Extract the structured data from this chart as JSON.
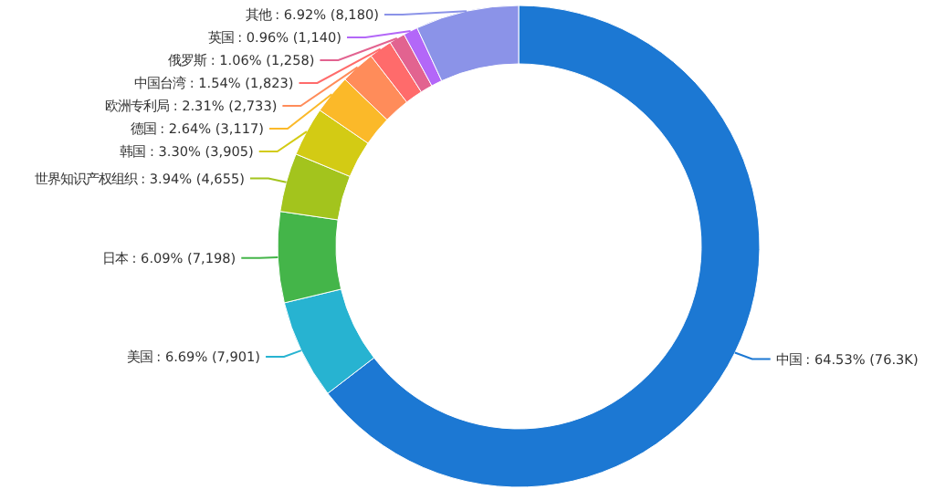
{
  "chart_data": {
    "type": "donut",
    "categories": [
      "中国",
      "美国",
      "日本",
      "世界知识产权组织",
      "韩国",
      "德国",
      "欧洲专利局",
      "中国台湾",
      "俄罗斯",
      "英国",
      "其他"
    ],
    "values": [
      76300,
      7901,
      7198,
      4655,
      3905,
      3117,
      2733,
      1823,
      1258,
      1140,
      8180
    ],
    "value_labels": [
      "64.53% (76.3K)",
      "6.69% (7,901)",
      "6.09% (7,198)",
      "3.94% (4,655)",
      "3.30% (3,905)",
      "2.64% (3,117)",
      "2.31% (2,733)",
      "1.54% (1,823)",
      "1.06% (1,258)",
      "0.96% (1,140)",
      "6.92% (8,180)"
    ],
    "colors": [
      "#1c78d3",
      "#27b3d1",
      "#44b549",
      "#a3c41d",
      "#d3cb14",
      "#fbb929",
      "#ff8c5a",
      "#ff6b6b",
      "#e26390",
      "#b367f8",
      "#8b93e8"
    ]
  }
}
